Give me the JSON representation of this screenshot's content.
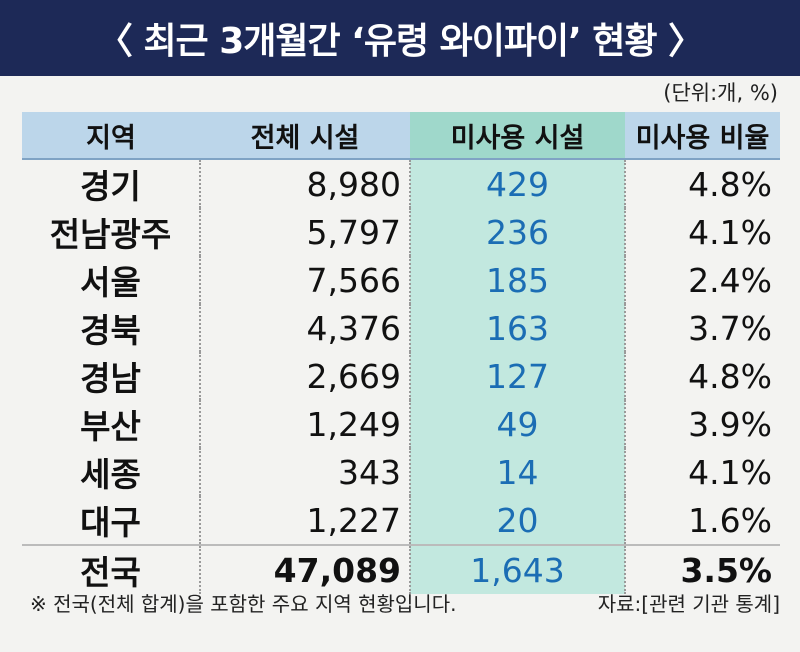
{
  "header": {
    "title": "〈 최근 3개월간 ‘유령 와이파이’ 현황 〉",
    "unit": "(단위:개, %)"
  },
  "table": {
    "columns": [
      "지역",
      "전체 시설",
      "미사용 시설",
      "미사용 비율"
    ],
    "rows": [
      [
        "경기",
        "8,980",
        "429",
        "4.8%"
      ],
      [
        "전남광주",
        "5,797",
        "236",
        "4.1%"
      ],
      [
        "서울",
        "7,566",
        "185",
        "2.4%"
      ],
      [
        "경북",
        "4,376",
        "163",
        "3.7%"
      ],
      [
        "경남",
        "2,669",
        "127",
        "4.8%"
      ],
      [
        "부산",
        "1,249",
        "49",
        "3.9%"
      ],
      [
        "세종",
        "343",
        "14",
        "4.1%"
      ],
      [
        "대구",
        "1,227",
        "20",
        "1.6%"
      ],
      [
        "전국",
        "47,089",
        "1,643",
        "3.5%"
      ]
    ]
  },
  "footer": {
    "note": "※ 전국(전체 합계)을 포함한 주요 지역 현황입니다.",
    "source": "자료:[관련 기관 통계]"
  }
}
